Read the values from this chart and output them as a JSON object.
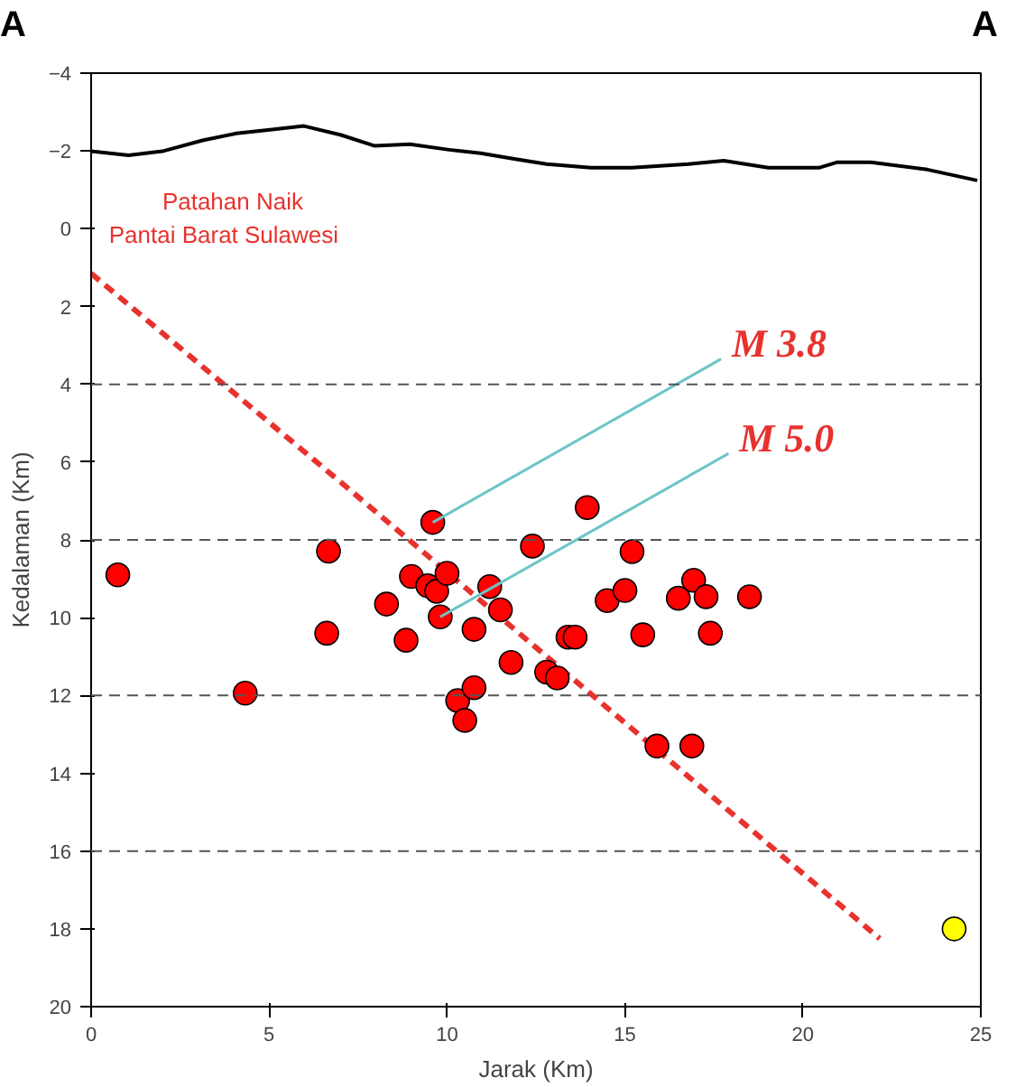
{
  "chart_data": {
    "type": "scatter",
    "xlabel": "Jarak (Km)",
    "ylabel": "Kedalaman (Km)",
    "xlim": [
      0,
      25
    ],
    "xticks": [
      0,
      5,
      10,
      15,
      20,
      25
    ],
    "ylim": [
      20,
      -4
    ],
    "yticks": [
      -4,
      -2,
      0,
      2,
      4,
      6,
      8,
      10,
      12,
      14,
      16,
      18,
      20
    ],
    "grid": false,
    "marker": "circle",
    "series": [
      {
        "type": "line",
        "marker": "none",
        "color": "#000000",
        "line_style": "solid",
        "x": [
          0,
          1.05,
          2.0,
          3.13,
          4.08,
          5.08,
          5.98,
          7.02,
          7.97,
          8.96,
          10.06,
          10.95,
          11.85,
          12.8,
          14.05,
          15.19,
          16.78,
          17.78,
          19.03,
          20.47,
          20.97,
          21.91,
          23.5,
          24.9
        ],
        "values": [
          -1.99,
          -1.89,
          -1.99,
          -2.27,
          -2.45,
          -2.55,
          -2.64,
          -2.41,
          -2.13,
          -2.17,
          -2.03,
          -1.94,
          -1.8,
          -1.66,
          -1.57,
          -1.57,
          -1.66,
          -1.75,
          -1.57,
          -1.57,
          -1.71,
          -1.71,
          -1.52,
          -1.24
        ]
      },
      {
        "type": "line",
        "marker": "none",
        "color": "#e8322e",
        "line_style": "dashed",
        "x": [
          0,
          7.2,
          22.16
        ],
        "values": [
          1.15,
          6.66,
          18.25
        ]
      },
      {
        "color": "#ff0000",
        "x": [
          0.75,
          4.33,
          6.67,
          6.62,
          8.3,
          8.85,
          9.0,
          9.46,
          9.71,
          9.6,
          9.81,
          10.0,
          10.3,
          10.5,
          10.76,
          10.76,
          11.2,
          11.5,
          11.8,
          12.4,
          12.8,
          13.1,
          13.4,
          13.6,
          13.94,
          14.5,
          15.0,
          15.2,
          15.5,
          15.9,
          16.5,
          16.88,
          16.93,
          17.28,
          17.4,
          18.5
        ],
        "values": [
          8.9,
          11.94,
          8.29,
          10.4,
          9.65,
          10.58,
          8.94,
          9.18,
          9.32,
          7.55,
          9.98,
          8.86,
          12.13,
          12.64,
          11.8,
          10.3,
          9.2,
          9.8,
          11.15,
          8.16,
          11.4,
          11.55,
          10.5,
          10.5,
          7.17,
          9.56,
          9.3,
          8.3,
          10.44,
          13.3,
          9.5,
          13.3,
          9.04,
          9.46,
          10.4,
          9.46
        ]
      },
      {
        "color": "#ffff00",
        "x": [
          24.25
        ],
        "values": [
          18.0
        ]
      }
    ],
    "ref_lines": [
      {
        "axis": "y",
        "value": 4,
        "line_style": "dashed",
        "color": "#555555"
      },
      {
        "axis": "y",
        "value": 8,
        "line_style": "dashed",
        "color": "#555555"
      },
      {
        "axis": "y",
        "value": 12,
        "line_style": "dashed",
        "color": "#555555"
      },
      {
        "axis": "y",
        "value": 16,
        "line_style": "dashed",
        "color": "#555555"
      }
    ],
    "annotations": [
      "A",
      "A",
      "Patahan Naik",
      "Pantai Barat Sulawesi",
      {
        "text": "M 3.8",
        "x": 9.6,
        "y": 7.55
      },
      {
        "text": "M 5.0",
        "x": 9.81,
        "y": 9.98
      }
    ]
  }
}
